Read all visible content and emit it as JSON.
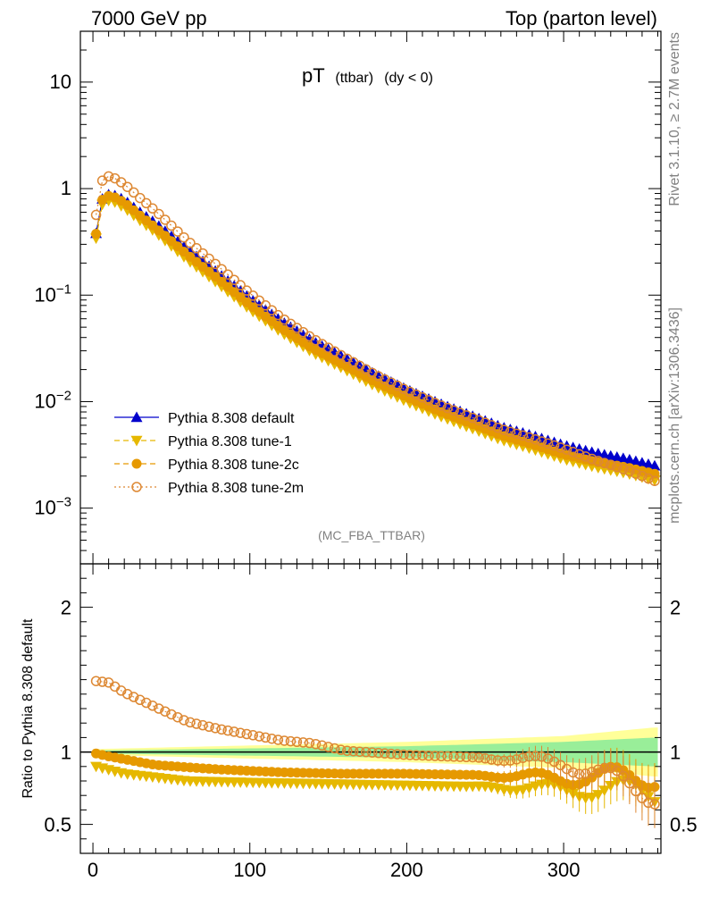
{
  "header": {
    "left": "7000 GeV pp",
    "right": "Top (parton level)"
  },
  "title": {
    "main": "pT",
    "sub": "(ttbar)",
    "cut": "(dy < 0)"
  },
  "side_text": {
    "rivet": "Rivet 3.1.10, ≥ 2.7M events",
    "mcplots": "mcplots.cern.ch [arXiv:1306.3436]"
  },
  "analysis_label": "(MC_FBA_TTBAR)",
  "ratio_ylabel": "Ratio to Pythia 8.308 default",
  "colors": {
    "default": "#0000cc",
    "tune1": "#e6b800",
    "tune2c": "#e69900",
    "tune2m": "#dd8833",
    "band_inner": "#99ee99",
    "band_outer": "#ffff99"
  },
  "chart_data": [
    {
      "type": "scatter",
      "panel": "main",
      "yscale": "log",
      "xlim": [
        -8,
        362
      ],
      "ylim": [
        0.0003,
        30
      ],
      "ytick_labels": [
        "10",
        "1",
        "10^-1",
        "10^-2",
        "10^-3"
      ],
      "ytick_values": [
        10,
        1,
        0.1,
        0.01,
        0.001
      ],
      "grid": false,
      "legend_position": "bottom-left",
      "bin_step": 4,
      "bin_centers": {
        "start": 2,
        "count": 90
      },
      "series": [
        {
          "name": "Pythia 8.308 default",
          "key": "default",
          "marker": "triangle-up",
          "peak": 0.88,
          "amp_main": 1.0,
          "tail_cut": 0.0025
        },
        {
          "name": "Pythia 8.308 tune-1",
          "key": "tune1",
          "marker": "triangle-down",
          "peak": 0.75,
          "amp_main": 0.8,
          "tail_cut": 0.002
        },
        {
          "name": "Pythia 8.308 tune-2c",
          "key": "tune2c",
          "marker": "circle",
          "peak": 0.85,
          "amp_main": 0.86,
          "tail_cut": 0.0021
        },
        {
          "name": "Pythia 8.308 tune-2m",
          "key": "tune2m",
          "marker": "open-circle",
          "peak": 1.22,
          "amp_main": 1.0,
          "tail_cut": 0.0018
        }
      ],
      "shape_points": [
        [
          2,
          0.38
        ],
        [
          6,
          0.8
        ],
        [
          10,
          0.88
        ],
        [
          14,
          0.86
        ],
        [
          20,
          0.78
        ],
        [
          30,
          0.6
        ],
        [
          40,
          0.47
        ],
        [
          60,
          0.27
        ],
        [
          80,
          0.16
        ],
        [
          100,
          0.093
        ],
        [
          120,
          0.057
        ],
        [
          140,
          0.037
        ],
        [
          160,
          0.026
        ],
        [
          180,
          0.018
        ],
        [
          200,
          0.013
        ],
        [
          220,
          0.0097
        ],
        [
          240,
          0.0075
        ],
        [
          260,
          0.0058
        ],
        [
          280,
          0.0048
        ],
        [
          300,
          0.0039
        ],
        [
          320,
          0.0033
        ],
        [
          340,
          0.0029
        ],
        [
          358,
          0.0025
        ]
      ]
    },
    {
      "type": "scatter",
      "panel": "ratio",
      "xlim": [
        -8,
        362
      ],
      "ylim": [
        0.3,
        2.3
      ],
      "xticks": [
        0,
        100,
        200,
        300
      ],
      "yticks": [
        0.5,
        1,
        2
      ],
      "ytick_labels": [
        "0.5",
        "1",
        "2"
      ],
      "ratio_shapes": {
        "tune1": [
          [
            2,
            0.9
          ],
          [
            20,
            0.85
          ],
          [
            60,
            0.8
          ],
          [
            100,
            0.79
          ],
          [
            150,
            0.78
          ],
          [
            200,
            0.77
          ],
          [
            250,
            0.76
          ],
          [
            300,
            0.74
          ],
          [
            358,
            0.73
          ]
        ],
        "tune2c": [
          [
            2,
            0.99
          ],
          [
            10,
            0.97
          ],
          [
            40,
            0.91
          ],
          [
            80,
            0.88
          ],
          [
            120,
            0.86
          ],
          [
            160,
            0.85
          ],
          [
            200,
            0.85
          ],
          [
            250,
            0.84
          ],
          [
            300,
            0.82
          ],
          [
            358,
            0.84
          ]
        ],
        "tune2m": [
          [
            2,
            1.49
          ],
          [
            10,
            1.48
          ],
          [
            20,
            1.41
          ],
          [
            40,
            1.31
          ],
          [
            60,
            1.21
          ],
          [
            80,
            1.16
          ],
          [
            100,
            1.12
          ],
          [
            120,
            1.08
          ],
          [
            140,
            1.06
          ],
          [
            160,
            1.01
          ],
          [
            200,
            0.98
          ],
          [
            250,
            0.96
          ],
          [
            300,
            0.93
          ],
          [
            358,
            0.72
          ]
        ]
      },
      "band_inner_halfwidth": [
        [
          0,
          0.01
        ],
        [
          200,
          0.04
        ],
        [
          300,
          0.07
        ],
        [
          358,
          0.1
        ]
      ],
      "band_outer_halfwidth": [
        [
          0,
          0.02
        ],
        [
          200,
          0.07
        ],
        [
          300,
          0.11
        ],
        [
          358,
          0.17
        ]
      ]
    }
  ]
}
